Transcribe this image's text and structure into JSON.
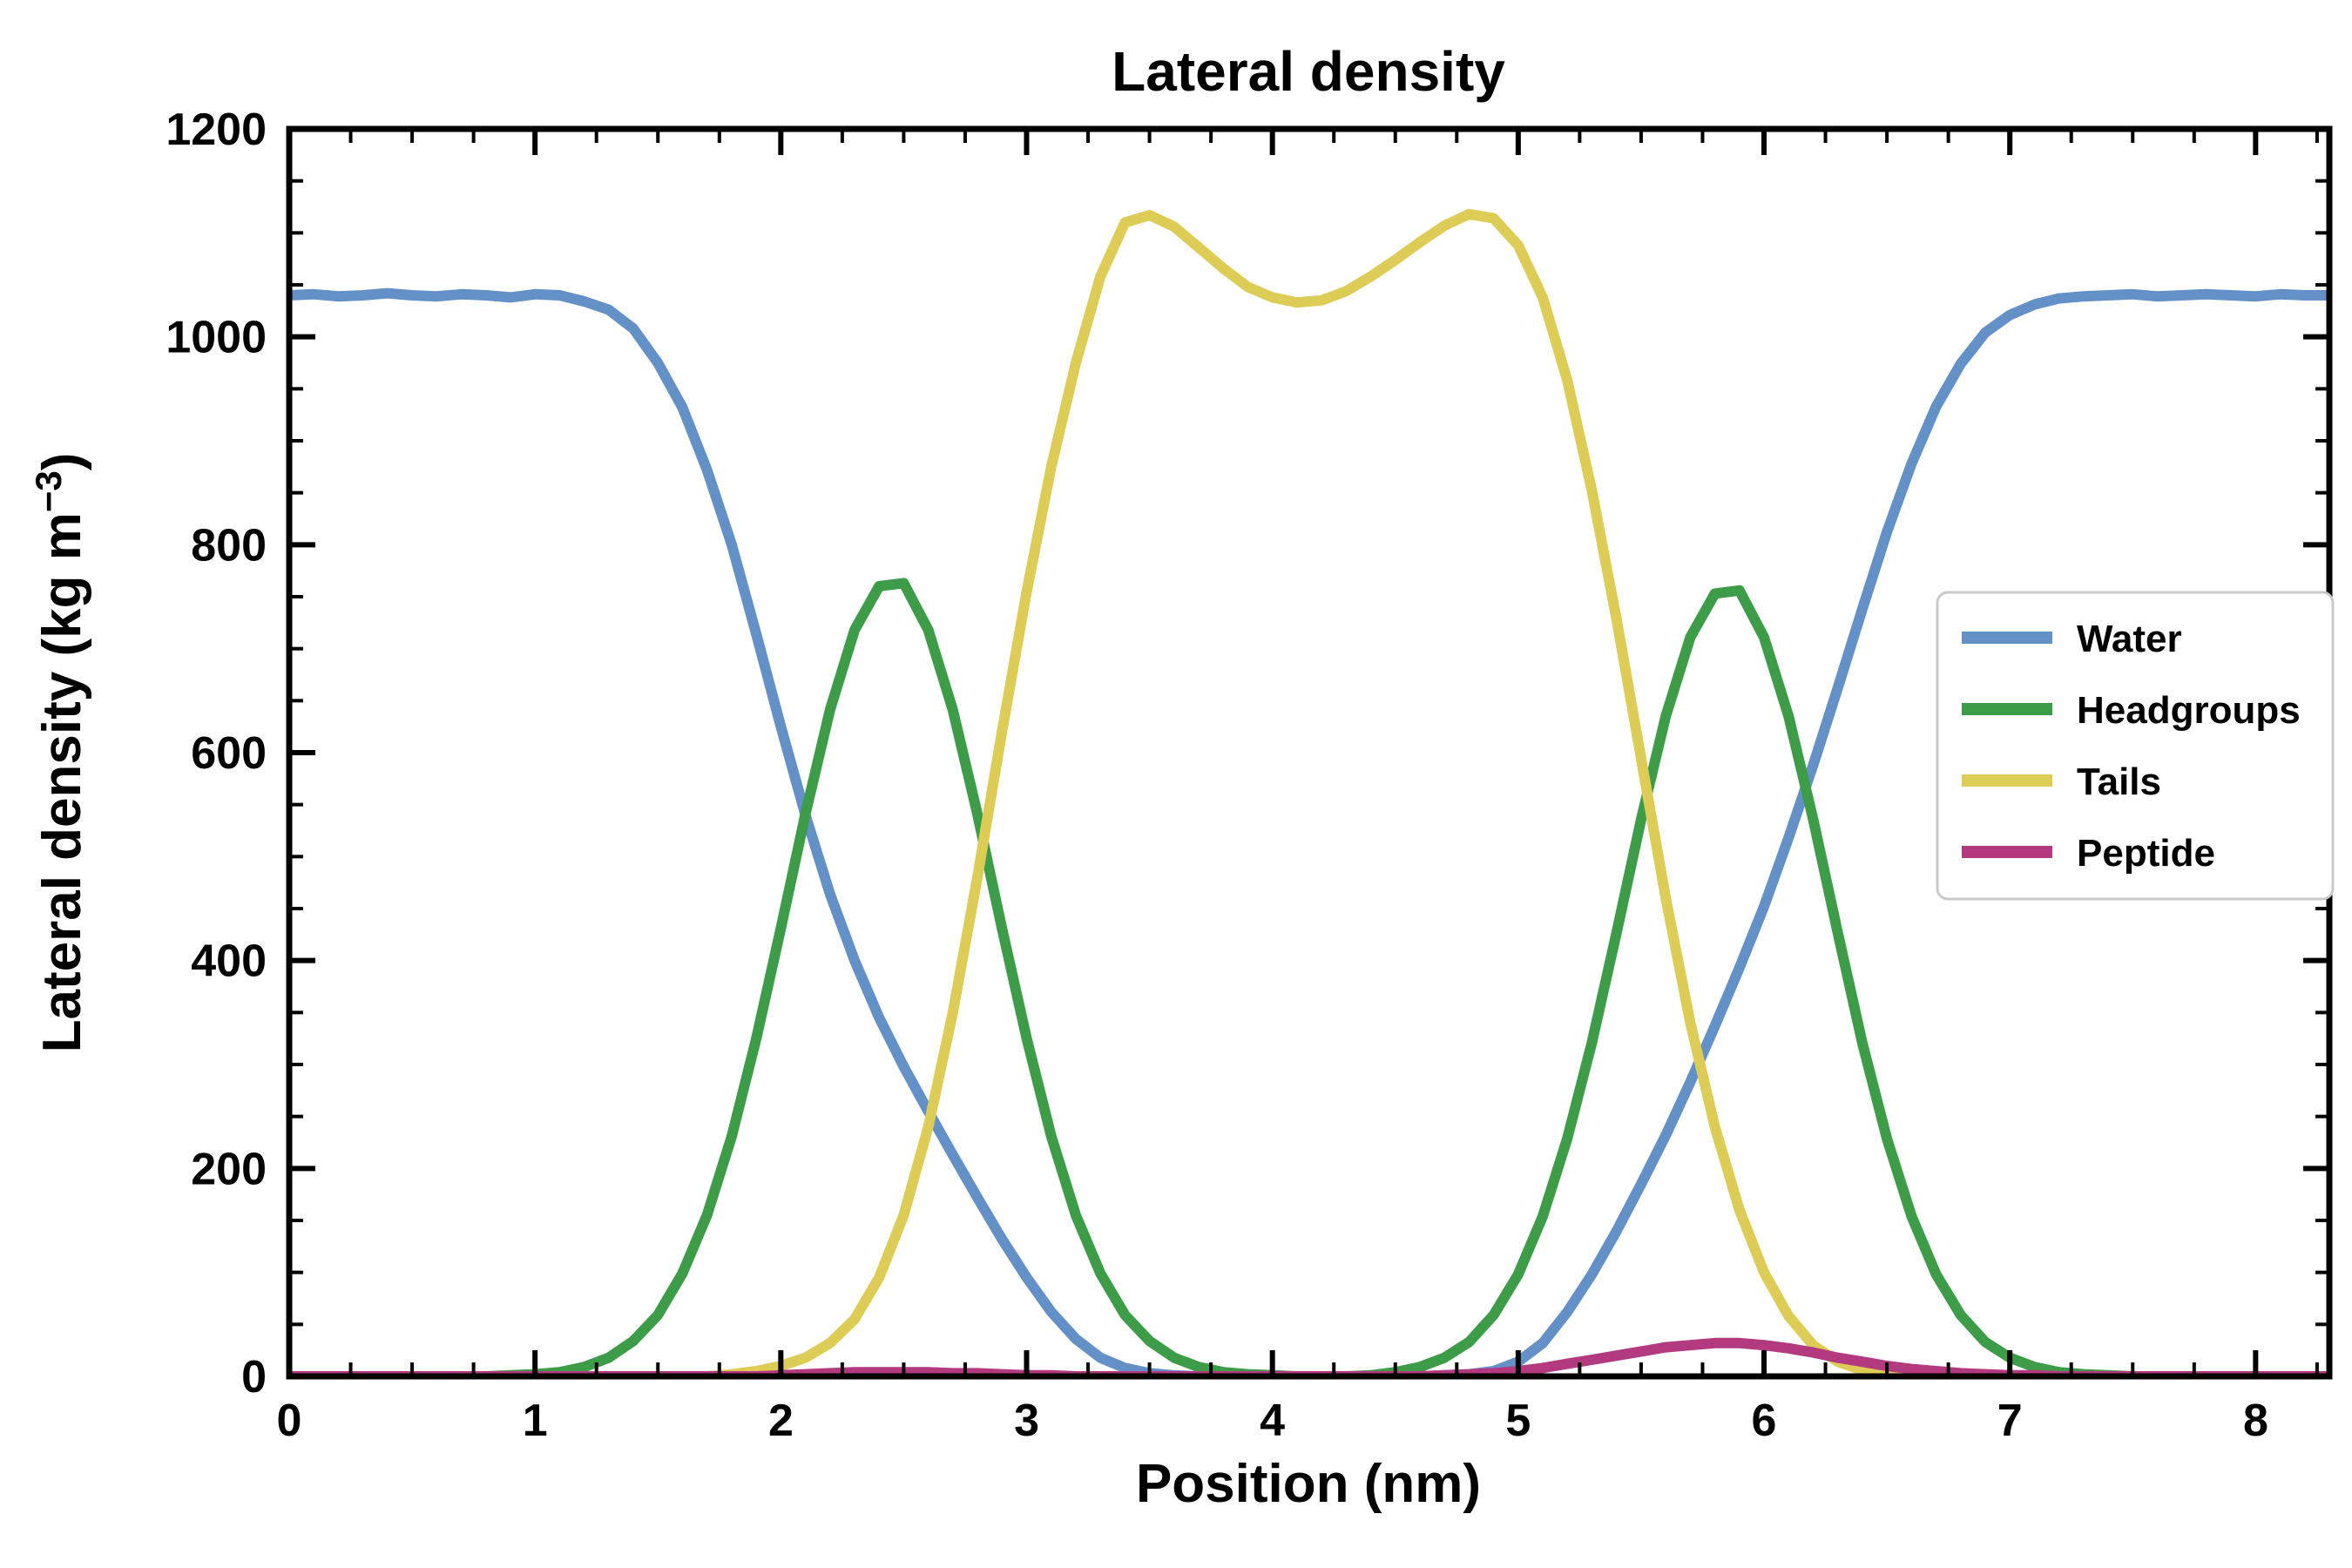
{
  "chart_data": {
    "type": "line",
    "title": "Lateral density",
    "xlabel": "Position (nm)",
    "ylabel": "Lateral density (kg m⁻³)",
    "ylabel_parts": {
      "main": "Lateral density (kg m",
      "sup": "−3",
      "close": ")"
    },
    "xlim": [
      0,
      8.3
    ],
    "ylim": [
      0,
      1200
    ],
    "xticks": [
      0,
      1,
      2,
      3,
      4,
      5,
      6,
      7,
      8
    ],
    "yticks": [
      0,
      200,
      400,
      600,
      800,
      1000,
      1200
    ],
    "x_minor_step": 0.25,
    "y_minor_step": 50,
    "x_step": 0.1,
    "grid": false,
    "legend_position": "center-right",
    "series": [
      {
        "name": "Water",
        "color": "#6391c7",
        "values": [
          1040,
          1041,
          1039,
          1040,
          1042,
          1040,
          1039,
          1041,
          1040,
          1038,
          1041,
          1040,
          1034,
          1026,
          1008,
          975,
          932,
          872,
          800,
          714,
          625,
          540,
          464,
          400,
          345,
          298,
          255,
          213,
          172,
          132,
          95,
          62,
          36,
          18,
          8,
          3,
          1,
          0,
          0,
          0,
          0,
          0,
          0,
          0,
          0,
          0,
          0,
          1,
          2,
          5,
          14,
          32,
          62,
          98,
          140,
          185,
          232,
          283,
          337,
          393,
          452,
          518,
          588,
          662,
          738,
          812,
          878,
          933,
          974,
          1004,
          1021,
          1031,
          1037,
          1039,
          1040,
          1041,
          1039,
          1040,
          1041,
          1040,
          1039,
          1041,
          1040,
          1040
        ]
      },
      {
        "name": "Headgroups",
        "color": "#3d9c47",
        "values": [
          0,
          0,
          0,
          0,
          0,
          0,
          0,
          0,
          0,
          1,
          2,
          4,
          9,
          18,
          34,
          59,
          99,
          155,
          231,
          325,
          431,
          541,
          641,
          718,
          760,
          763,
          718,
          641,
          541,
          431,
          325,
          231,
          155,
          99,
          59,
          34,
          18,
          9,
          4,
          2,
          1,
          0,
          0,
          0,
          1,
          4,
          9,
          18,
          33,
          59,
          98,
          154,
          229,
          321,
          427,
          536,
          635,
          711,
          753,
          756,
          711,
          635,
          536,
          427,
          321,
          229,
          154,
          98,
          59,
          33,
          18,
          9,
          4,
          2,
          1,
          0,
          0,
          0,
          0,
          0,
          0,
          0,
          0,
          0
        ]
      },
      {
        "name": "Tails",
        "color": "#ddcc55",
        "values": [
          0,
          0,
          0,
          0,
          0,
          0,
          0,
          0,
          0,
          0,
          0,
          0,
          0,
          0,
          0,
          0,
          0,
          0,
          2,
          5,
          10,
          18,
          32,
          55,
          95,
          155,
          240,
          350,
          480,
          620,
          755,
          875,
          975,
          1058,
          1110,
          1117,
          1106,
          1086,
          1066,
          1048,
          1038,
          1033,
          1035,
          1044,
          1058,
          1074,
          1091,
          1107,
          1118,
          1114,
          1088,
          1038,
          958,
          852,
          728,
          594,
          460,
          340,
          240,
          160,
          100,
          58,
          30,
          14,
          6,
          2,
          1,
          0,
          0,
          0,
          0,
          0,
          0,
          0,
          0,
          0,
          0,
          0,
          0,
          0,
          0,
          0,
          0,
          0,
          0
        ]
      },
      {
        "name": "Peptide",
        "color": "#b43a7f",
        "values": [
          0,
          0,
          0,
          0,
          0,
          0,
          0,
          0,
          0,
          0,
          0,
          0,
          0,
          0,
          0,
          0,
          0,
          0,
          0,
          0,
          1,
          2,
          3,
          4,
          4,
          4,
          4,
          3,
          3,
          2,
          1,
          1,
          0,
          0,
          0,
          0,
          0,
          0,
          0,
          0,
          0,
          0,
          0,
          0,
          0,
          0,
          0,
          1,
          2,
          3,
          5,
          8,
          12,
          16,
          20,
          24,
          28,
          30,
          32,
          32,
          30,
          27,
          23,
          18,
          14,
          10,
          7,
          5,
          3,
          2,
          1,
          1,
          0,
          0,
          0,
          0,
          0,
          0,
          0,
          0,
          0,
          0,
          0,
          0
        ]
      }
    ],
    "legend_entries": [
      "Water",
      "Headgroups",
      "Tails",
      "Peptide"
    ]
  }
}
